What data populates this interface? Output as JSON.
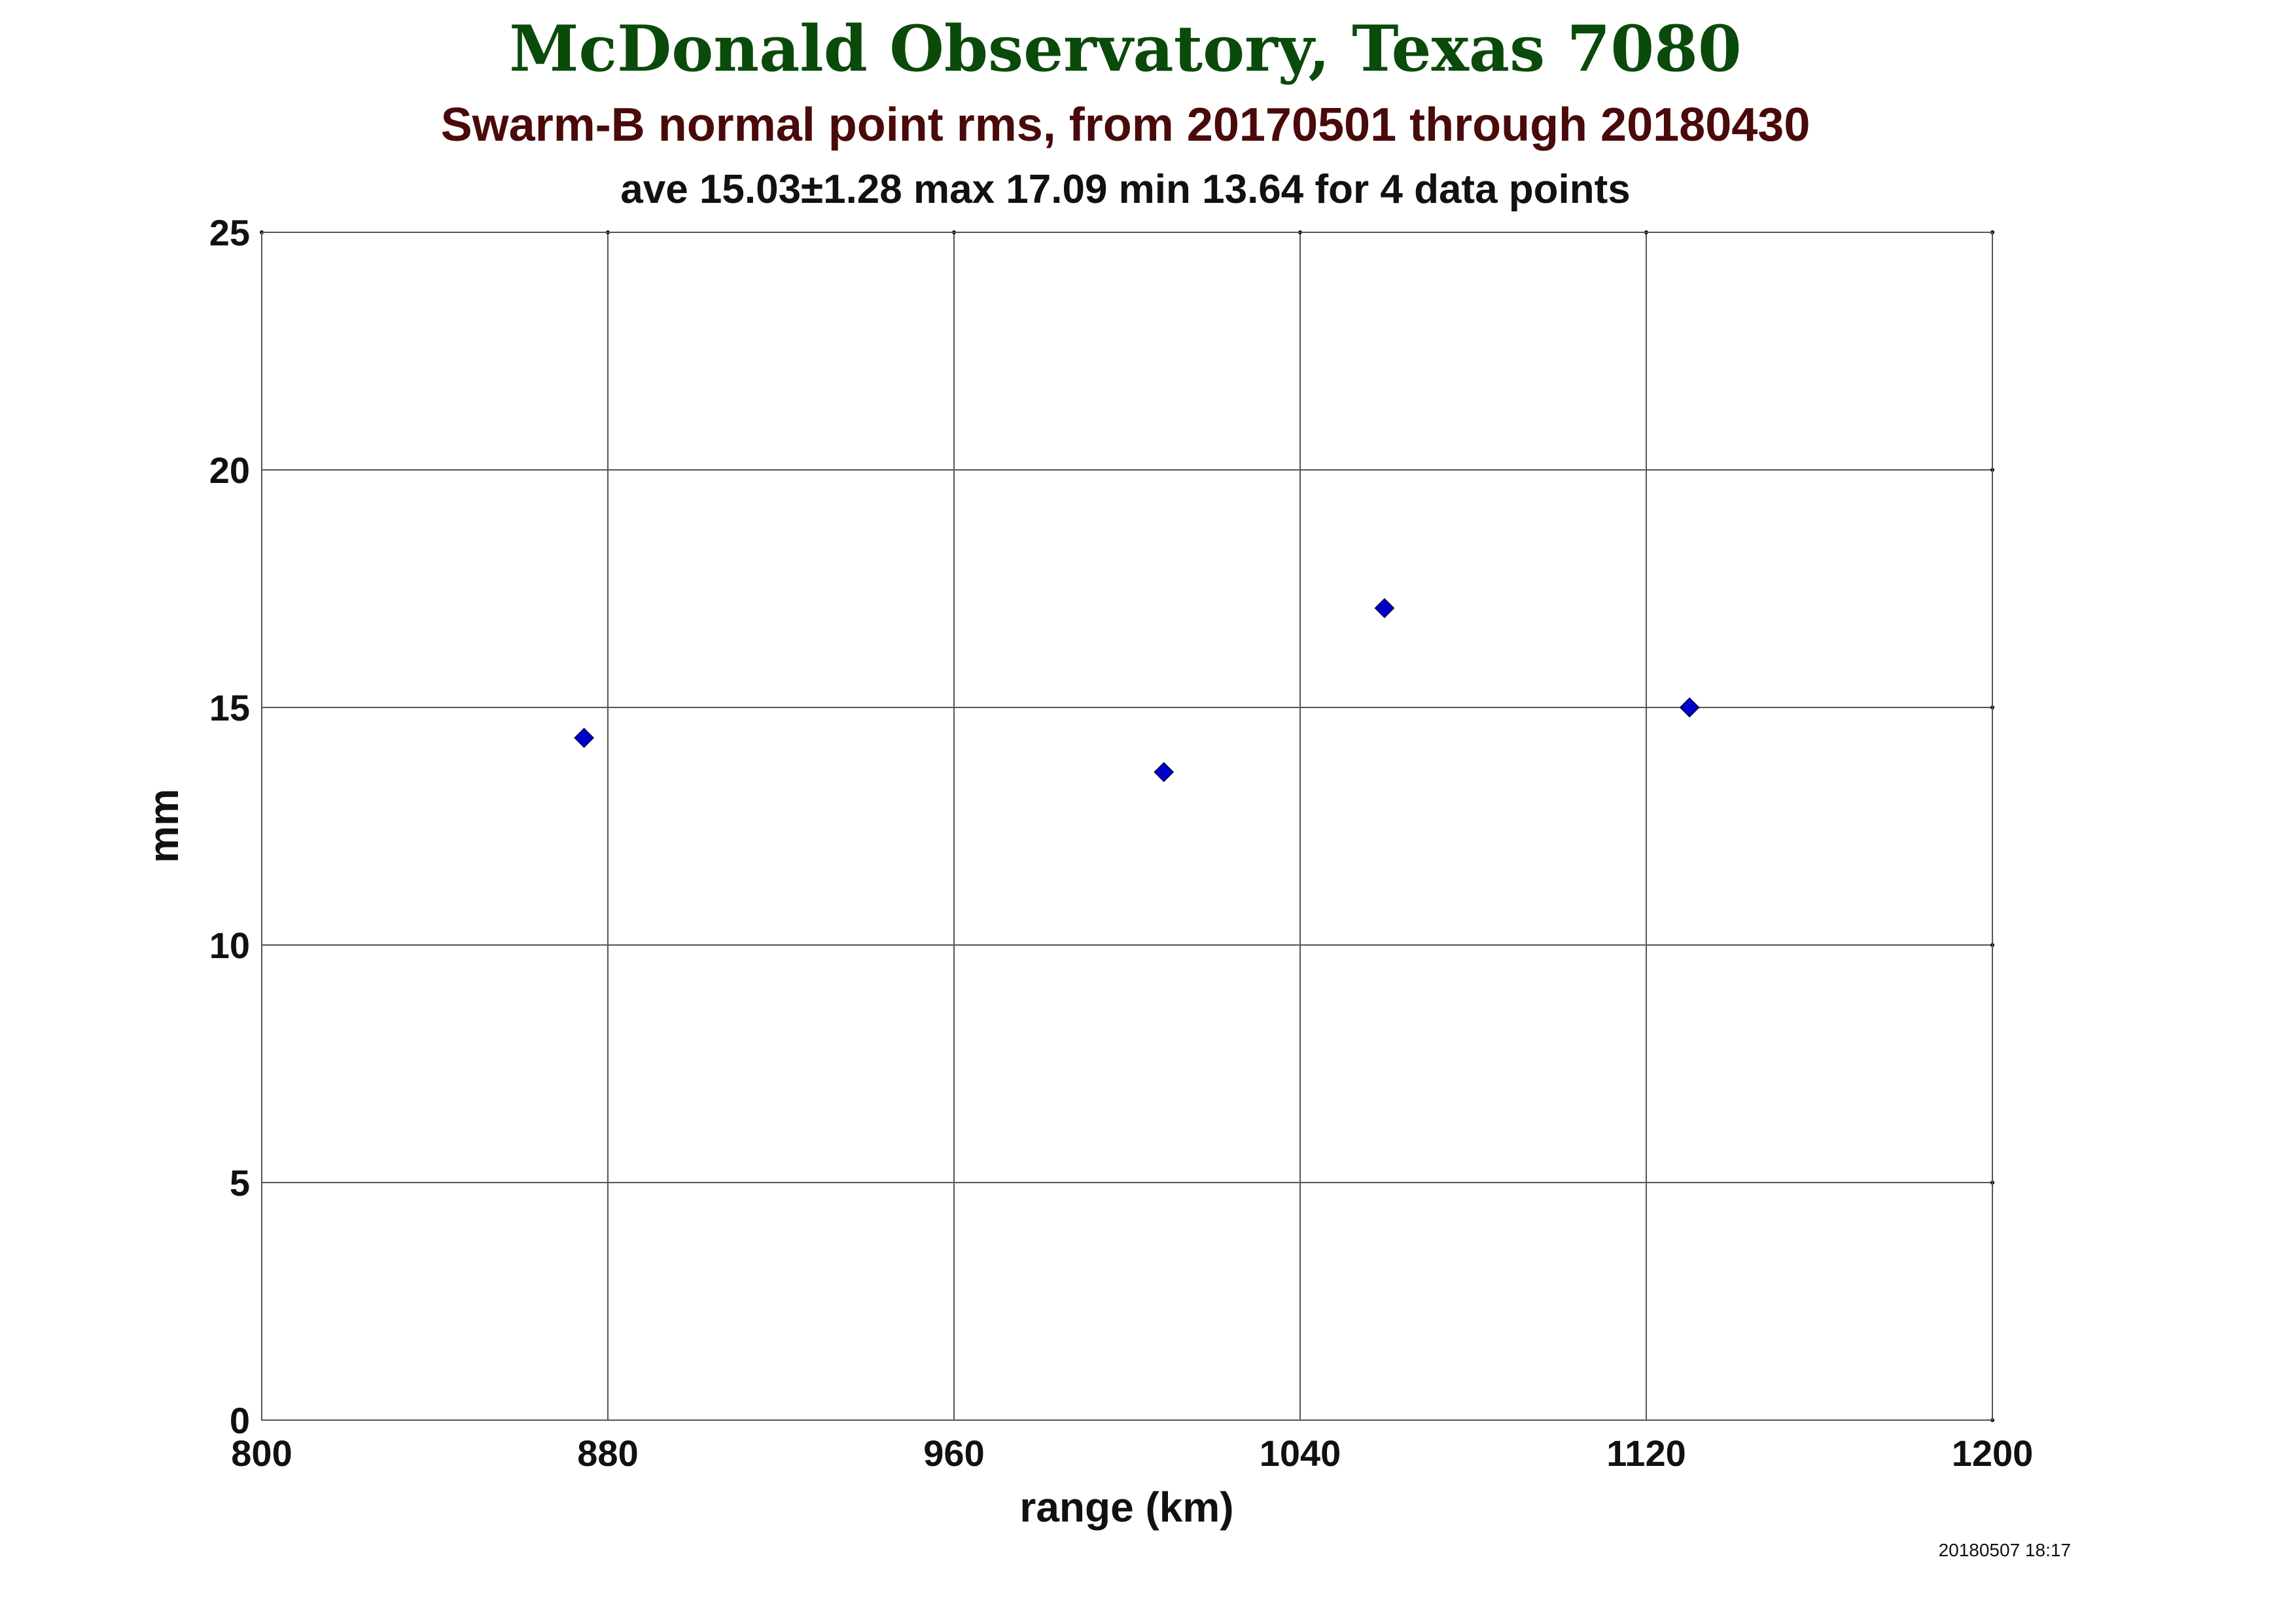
{
  "chart_data": {
    "type": "scatter",
    "title": "McDonald Observatory, Texas 7080",
    "subtitle": "Swarm-B normal point rms, from 20170501 through 20180430",
    "stats_line": "ave 15.03±1.28 max 17.09 min 13.64 for 4 data points",
    "xlabel": "range (km)",
    "ylabel": "mm",
    "xlim": [
      800,
      1200
    ],
    "ylim": [
      0,
      25
    ],
    "xticks": [
      800,
      880,
      960,
      1040,
      1120,
      1200
    ],
    "yticks": [
      0,
      5,
      10,
      15,
      20,
      25
    ],
    "grid": true,
    "series": [
      {
        "marker": "diamond",
        "color": "#0000cc",
        "x": [
          874.5,
          1008.5,
          1059.5,
          1130
        ],
        "y": [
          14.36,
          13.64,
          17.09,
          15.0
        ]
      }
    ],
    "timestamp": "20180507 18:17"
  },
  "colors": {
    "title": "#0a4a0a",
    "subtitle": "#4a0a0a",
    "text": "#111111",
    "grid": "#555555",
    "marker": "#0000cc"
  }
}
